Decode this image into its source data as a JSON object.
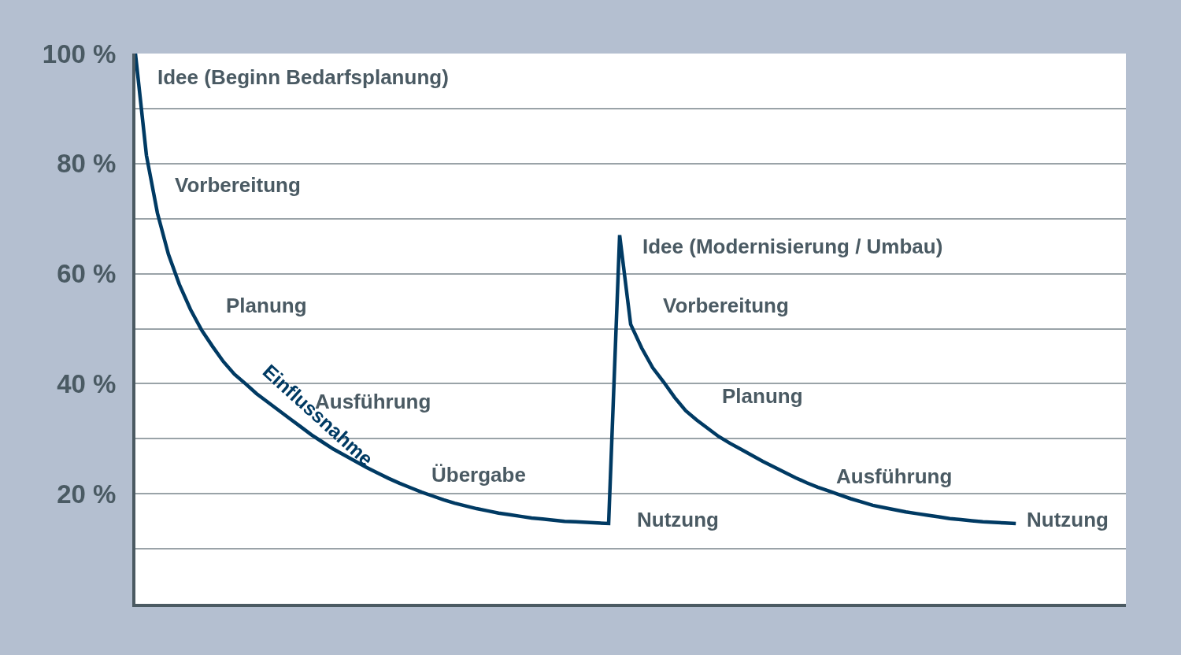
{
  "chart_data": {
    "type": "line",
    "categories": [
      null,
      null,
      null,
      null,
      null,
      null,
      null,
      null,
      null,
      null,
      null,
      null,
      null,
      null,
      null,
      null,
      null,
      null,
      null,
      null,
      null,
      null,
      null,
      null,
      null,
      null,
      null,
      null,
      null,
      null,
      null,
      null,
      null,
      null,
      null,
      null,
      null,
      null,
      null,
      null,
      null,
      null,
      null,
      null,
      null,
      null,
      null,
      null,
      null,
      null,
      null,
      null,
      null,
      null,
      null,
      null,
      null,
      null,
      null,
      null,
      null,
      null,
      null,
      null,
      null,
      null,
      null,
      null,
      null,
      null,
      null,
      null,
      null,
      null,
      null,
      null,
      null,
      null,
      null,
      null,
      null,
      null,
      null,
      null,
      null,
      null,
      null,
      null,
      null,
      null,
      null
    ],
    "series": [
      {
        "name": "Einflussnahme",
        "color": "#003a63",
        "values": [
          100,
          81.5,
          71,
          63.5,
          58,
          53.5,
          49.8,
          46.8,
          44,
          41.7,
          40,
          38.2,
          36.7,
          35.2,
          33.7,
          32.2,
          30.7,
          29.4,
          28.1,
          27,
          25.9,
          24.8,
          23.8,
          22.8,
          21.9,
          21.1,
          20.3,
          19.6,
          18.9,
          18.3,
          17.8,
          17.3,
          16.9,
          16.5,
          16.2,
          15.9,
          15.6,
          15.4,
          15.2,
          15,
          14.9,
          14.8,
          14.7,
          14.6,
          67,
          50.8,
          46.5,
          42.9,
          40.3,
          37.5,
          35.1,
          33.4,
          31.9,
          30.4,
          29.2,
          28.1,
          27,
          25.9,
          24.9,
          23.9,
          22.9,
          22,
          21.2,
          20.5,
          19.8,
          19.1,
          18.5,
          17.9,
          17.5,
          17.1,
          16.7,
          16.4,
          16.1,
          15.8,
          15.5,
          15.3,
          15.1,
          14.9,
          14.8,
          14.7,
          14.6,
          null,
          null,
          null,
          null,
          null,
          null,
          null,
          null,
          null,
          null
        ]
      }
    ],
    "ylim": [
      0,
      100
    ],
    "yticks": [
      {
        "value": 10,
        "label": null
      },
      {
        "value": 20,
        "label": "20 %"
      },
      {
        "value": 30,
        "label": null
      },
      {
        "value": 40,
        "label": "40 %"
      },
      {
        "value": 50,
        "label": null
      },
      {
        "value": 60,
        "label": "60 %"
      },
      {
        "value": 70,
        "label": null
      },
      {
        "value": 80,
        "label": "80 %"
      },
      {
        "value": 90,
        "label": null
      },
      {
        "value": 100,
        "label": "100 %"
      }
    ],
    "grid": "y",
    "legend": false,
    "marker": "none",
    "line_style": "solid",
    "annotations": [
      "Idee (Beginn Bedarfsplanung)",
      "Vorbereitung",
      "Planung",
      "Ausführung",
      "Übergabe",
      "Nutzung",
      "Idee (Modernisierung / Umbau)",
      "Vorbereitung",
      "Planung",
      "Ausführung",
      "Nutzung"
    ]
  }
}
